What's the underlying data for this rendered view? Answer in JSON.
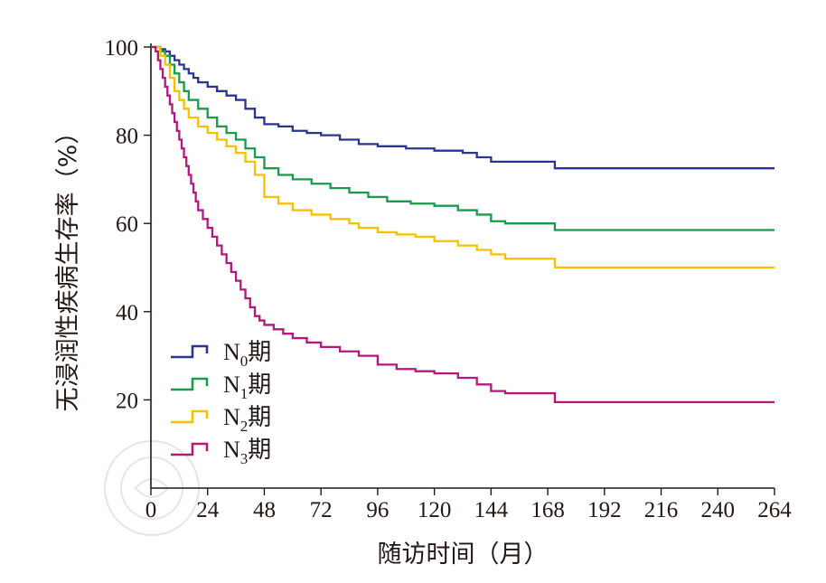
{
  "chart_data": {
    "type": "line",
    "step": true,
    "xlabel": "随访时间（月）",
    "ylabel": "无浸润性疾病生存率（%）",
    "xlim": [
      0,
      264
    ],
    "ylim": [
      0,
      100
    ],
    "xticks": [
      0,
      24,
      48,
      72,
      96,
      120,
      144,
      168,
      192,
      216,
      240,
      264
    ],
    "yticks": [
      20,
      40,
      60,
      80,
      100
    ],
    "grid": false,
    "legend_position": "lower-left",
    "series": [
      {
        "name": "N0期",
        "legend": {
          "main": "N",
          "sub": "0",
          "suffix": "期"
        },
        "color": "#2b3591",
        "x": [
          0,
          2,
          4,
          6,
          8,
          10,
          12,
          14,
          16,
          18,
          20,
          24,
          28,
          32,
          36,
          40,
          44,
          48,
          54,
          60,
          66,
          72,
          80,
          88,
          96,
          108,
          120,
          132,
          138,
          144,
          150,
          160,
          171,
          180,
          200,
          220,
          240,
          264
        ],
        "y": [
          100,
          100,
          99.5,
          99,
          98,
          97,
          96,
          95,
          94,
          93,
          92,
          91,
          90,
          89,
          88,
          86,
          84,
          82.5,
          82,
          81,
          80.5,
          80,
          79,
          78,
          77.5,
          77,
          76.5,
          76,
          75,
          74,
          74,
          74,
          72.5,
          72.5,
          72.5,
          72.5,
          72.5,
          72.5
        ]
      },
      {
        "name": "N1期",
        "legend": {
          "main": "N",
          "sub": "1",
          "suffix": "期"
        },
        "color": "#1a9b4b",
        "x": [
          0,
          2,
          4,
          6,
          8,
          10,
          12,
          14,
          16,
          20,
          24,
          28,
          32,
          36,
          40,
          44,
          48,
          54,
          60,
          68,
          76,
          84,
          92,
          100,
          110,
          120,
          130,
          138,
          144,
          150,
          160,
          171,
          180,
          200,
          220,
          240,
          264
        ],
        "y": [
          100,
          100,
          99,
          98,
          96,
          94,
          92,
          90,
          88,
          86,
          84,
          82,
          80.5,
          79,
          77,
          75,
          72.5,
          71,
          70,
          69,
          68,
          67,
          66,
          65,
          64.5,
          64,
          63,
          62,
          60.5,
          60,
          60,
          58.5,
          58.5,
          58.5,
          58.5,
          58.5,
          58.5
        ]
      },
      {
        "name": "N2期",
        "legend": {
          "main": "N",
          "sub": "2",
          "suffix": "期"
        },
        "color": "#f5c100",
        "x": [
          0,
          2,
          4,
          6,
          8,
          10,
          12,
          14,
          16,
          20,
          24,
          28,
          32,
          36,
          40,
          44,
          48,
          54,
          60,
          68,
          76,
          84,
          88,
          96,
          104,
          112,
          120,
          130,
          138,
          144,
          150,
          160,
          171,
          180,
          200,
          220,
          240,
          264
        ],
        "y": [
          100,
          100,
          98,
          96,
          93,
          90,
          88,
          86,
          84,
          82,
          80.5,
          79,
          77.5,
          76,
          74,
          71,
          66,
          64.5,
          63,
          62,
          61,
          60,
          59,
          58,
          57.5,
          57,
          56,
          55,
          54,
          53,
          52,
          52,
          50,
          50,
          50,
          50,
          50,
          50
        ]
      },
      {
        "name": "N3期",
        "legend": {
          "main": "N",
          "sub": "3",
          "suffix": "期"
        },
        "color": "#b5177f",
        "x": [
          0,
          2,
          3,
          4,
          5,
          6,
          7,
          8,
          9,
          10,
          11,
          12,
          13,
          14,
          15,
          16,
          17,
          18,
          19,
          20,
          22,
          24,
          26,
          28,
          30,
          32,
          34,
          36,
          38,
          40,
          42,
          44,
          46,
          48,
          52,
          56,
          60,
          66,
          72,
          80,
          88,
          96,
          104,
          112,
          120,
          130,
          138,
          144,
          150,
          160,
          171,
          180,
          200,
          220,
          240,
          264
        ],
        "y": [
          100,
          99,
          97,
          95,
          93,
          91,
          89,
          87,
          85,
          83,
          81,
          79,
          77,
          75,
          73,
          71,
          69,
          67,
          65,
          63,
          61,
          59,
          57,
          55,
          53,
          51,
          49,
          47,
          45,
          43,
          41,
          39,
          38,
          37,
          36,
          35,
          34,
          33,
          32,
          31,
          30,
          28,
          27,
          26.5,
          26,
          25,
          23.5,
          22,
          21.5,
          21.5,
          19.5,
          19.5,
          19.5,
          19.5,
          19.5,
          19.5
        ]
      }
    ]
  }
}
